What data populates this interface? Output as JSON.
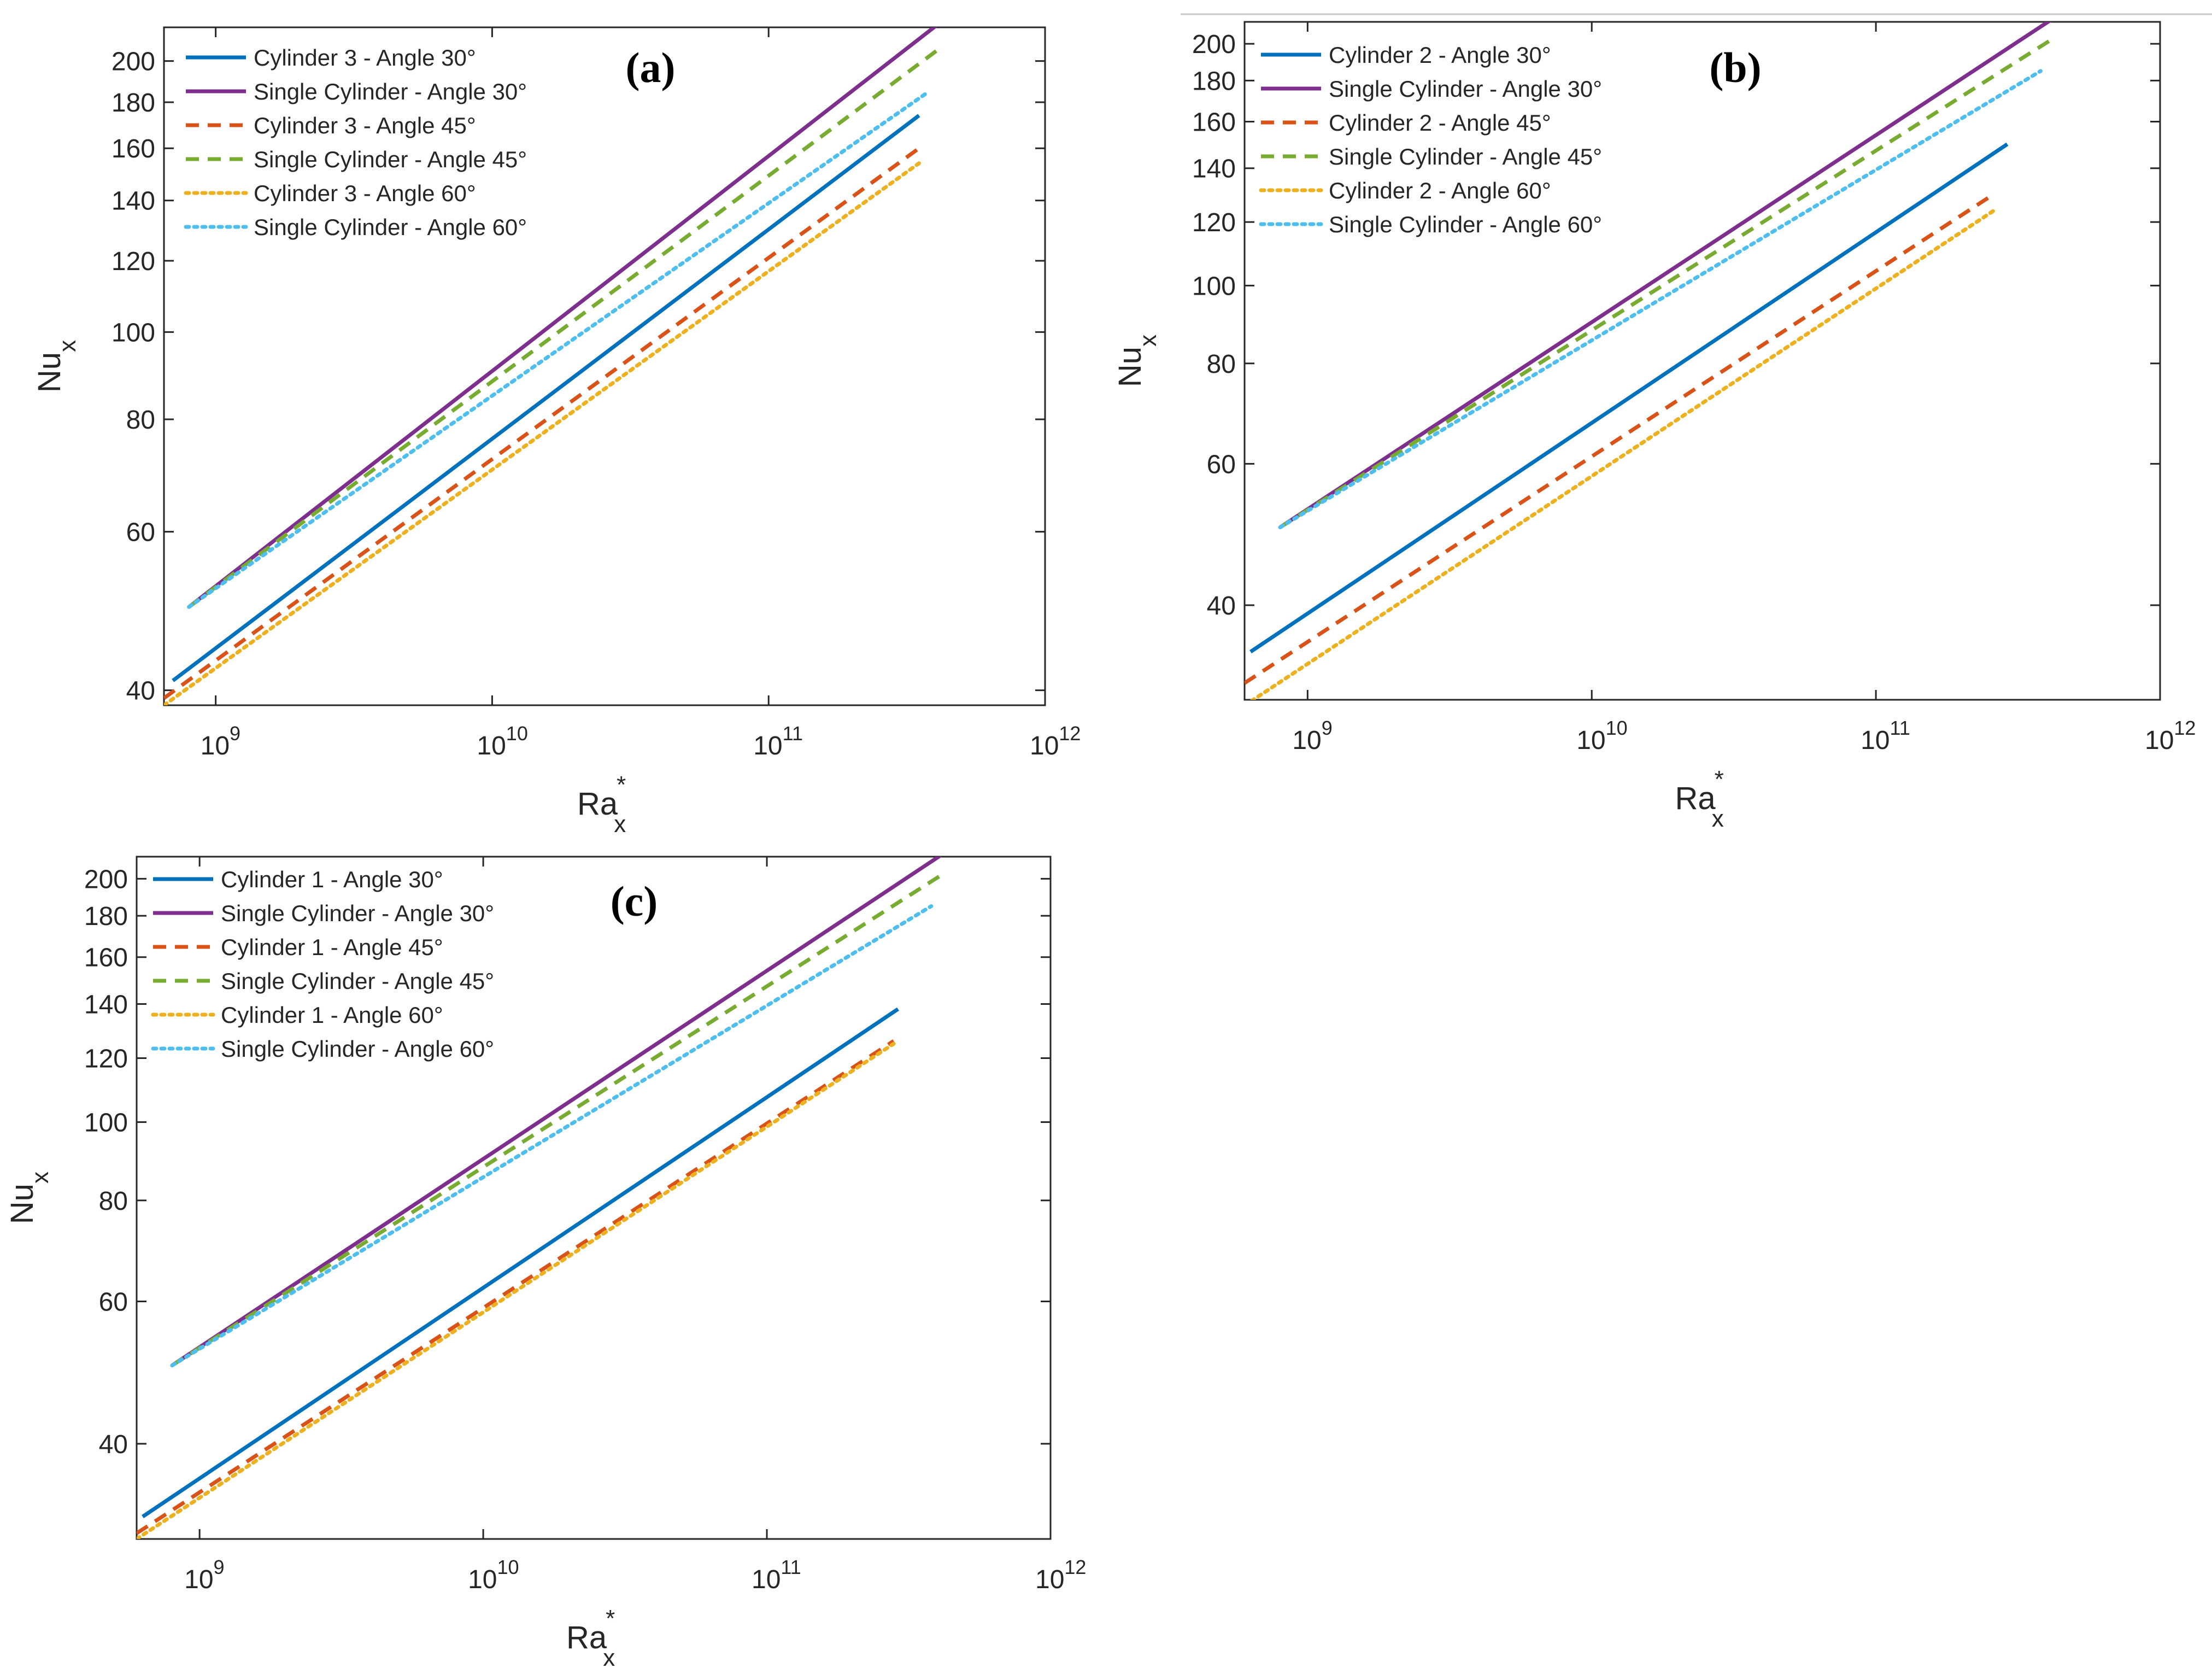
{
  "chart_data": [
    {
      "id": "a",
      "type": "line",
      "panel_label": "(a)",
      "xlabel": {
        "base": "Ra",
        "sub": "x",
        "sup": "*"
      },
      "ylabel": {
        "base": "Nu",
        "sub": "x"
      },
      "xscale": "log",
      "yscale": "log",
      "xlim": [
        650000000.0,
        1000000000000.0
      ],
      "ylim": [
        38.5,
        218
      ],
      "xticks": [
        {
          "value": 1000000000.0,
          "exp": "9"
        },
        {
          "value": 10000000000.0,
          "exp": "10"
        },
        {
          "value": 100000000000.0,
          "exp": "11"
        },
        {
          "value": 1000000000000.0,
          "exp": "12"
        }
      ],
      "yticks": [
        40,
        60,
        80,
        100,
        120,
        140,
        160,
        180,
        200
      ],
      "legend_location": "top-left",
      "series": [
        {
          "name": "Cylinder 3 - Angle 30°",
          "color": "#0072BD",
          "style": "solid",
          "x": [
            700000000.0,
            350000000000.0
          ],
          "y": [
            41,
            174
          ]
        },
        {
          "name": "Single Cylinder - Angle 30°",
          "color": "#7E2F8E",
          "style": "solid",
          "x": [
            800000000.0,
            420000000000.0
          ],
          "y": [
            49.5,
            221
          ]
        },
        {
          "name": "Cylinder 3 - Angle 45°",
          "color": "#D95319",
          "style": "dashed",
          "x": [
            650000000.0,
            350000000000.0
          ],
          "y": [
            39.2,
            160
          ]
        },
        {
          "name": "Single Cylinder - Angle 45°",
          "color": "#77AC30",
          "style": "dashed",
          "x": [
            800000000.0,
            420000000000.0
          ],
          "y": [
            49.5,
            207
          ]
        },
        {
          "name": "Cylinder 3 - Angle 60°",
          "color": "#EDB120",
          "style": "dotted",
          "x": [
            650000000.0,
            350000000000.0
          ],
          "y": [
            38.5,
            154
          ]
        },
        {
          "name": "Single Cylinder - Angle 60°",
          "color": "#4DBEEE",
          "style": "dotted",
          "x": [
            800000000.0,
            380000000000.0
          ],
          "y": [
            49.5,
            185
          ]
        }
      ]
    },
    {
      "id": "b",
      "type": "line",
      "panel_label": "(b)",
      "xlabel": {
        "base": "Ra",
        "sub": "x",
        "sup": "*"
      },
      "ylabel": {
        "base": "Nu",
        "sub": "x"
      },
      "xscale": "log",
      "yscale": "log",
      "xlim": [
        600000000.0,
        1000000000000.0
      ],
      "ylim": [
        30.5,
        213
      ],
      "xticks": [
        {
          "value": 1000000000.0,
          "exp": "9"
        },
        {
          "value": 10000000000.0,
          "exp": "10"
        },
        {
          "value": 100000000000.0,
          "exp": "11"
        },
        {
          "value": 1000000000000.0,
          "exp": "12"
        }
      ],
      "yticks": [
        40,
        60,
        80,
        100,
        120,
        140,
        160,
        180,
        200
      ],
      "legend_location": "top-left",
      "series": [
        {
          "name": "Cylinder 2 - Angle 30°",
          "color": "#0072BD",
          "style": "solid",
          "x": [
            630000000.0,
            290000000000.0
          ],
          "y": [
            35,
            150
          ]
        },
        {
          "name": "Single Cylinder - Angle 30°",
          "color": "#7E2F8E",
          "style": "solid",
          "x": [
            800000000.0,
            420000000000.0
          ],
          "y": [
            50,
            215
          ]
        },
        {
          "name": "Cylinder 2 - Angle 45°",
          "color": "#D95319",
          "style": "dashed",
          "x": [
            600000000.0,
            260000000000.0
          ],
          "y": [
            32,
            130
          ]
        },
        {
          "name": "Single Cylinder - Angle 45°",
          "color": "#77AC30",
          "style": "dashed",
          "x": [
            800000000.0,
            420000000000.0
          ],
          "y": [
            50,
            203
          ]
        },
        {
          "name": "Cylinder 2 - Angle 60°",
          "color": "#EDB120",
          "style": "dotted",
          "x": [
            600000000.0,
            260000000000.0
          ],
          "y": [
            30,
            124
          ]
        },
        {
          "name": "Single Cylinder - Angle 60°",
          "color": "#4DBEEE",
          "style": "dotted",
          "x": [
            800000000.0,
            380000000000.0
          ],
          "y": [
            50,
            185
          ]
        }
      ]
    },
    {
      "id": "c",
      "type": "line",
      "panel_label": "(c)",
      "xlabel": {
        "base": "Ra",
        "sub": "x",
        "sup": "*"
      },
      "ylabel": {
        "base": "Nu",
        "sub": "x"
      },
      "xscale": "log",
      "yscale": "log",
      "xlim": [
        600000000.0,
        1000000000000.0
      ],
      "ylim": [
        30.5,
        213
      ],
      "xticks": [
        {
          "value": 1000000000.0,
          "exp": "9"
        },
        {
          "value": 10000000000.0,
          "exp": "10"
        },
        {
          "value": 100000000000.0,
          "exp": "11"
        },
        {
          "value": 1000000000000.0,
          "exp": "12"
        }
      ],
      "yticks": [
        40,
        60,
        80,
        100,
        120,
        140,
        160,
        180,
        200
      ],
      "legend_location": "top-left",
      "series": [
        {
          "name": "Cylinder 1 - Angle 30°",
          "color": "#0072BD",
          "style": "solid",
          "x": [
            630000000.0,
            290000000000.0
          ],
          "y": [
            32.5,
            138
          ]
        },
        {
          "name": "Single Cylinder - Angle 30°",
          "color": "#7E2F8E",
          "style": "solid",
          "x": [
            800000000.0,
            420000000000.0
          ],
          "y": [
            50,
            215
          ]
        },
        {
          "name": "Cylinder 1 - Angle 45°",
          "color": "#D95319",
          "style": "dashed",
          "x": [
            600000000.0,
            280000000000.0
          ],
          "y": [
            31,
            126
          ]
        },
        {
          "name": "Single Cylinder - Angle 45°",
          "color": "#77AC30",
          "style": "dashed",
          "x": [
            800000000.0,
            420000000000.0
          ],
          "y": [
            50,
            203
          ]
        },
        {
          "name": "Cylinder 1 - Angle 60°",
          "color": "#EDB120",
          "style": "dotted",
          "x": [
            600000000.0,
            280000000000.0
          ],
          "y": [
            30.5,
            125
          ]
        },
        {
          "name": "Single Cylinder - Angle 60°",
          "color": "#4DBEEE",
          "style": "dotted",
          "x": [
            800000000.0,
            380000000000.0
          ],
          "y": [
            50,
            185
          ]
        }
      ]
    }
  ]
}
